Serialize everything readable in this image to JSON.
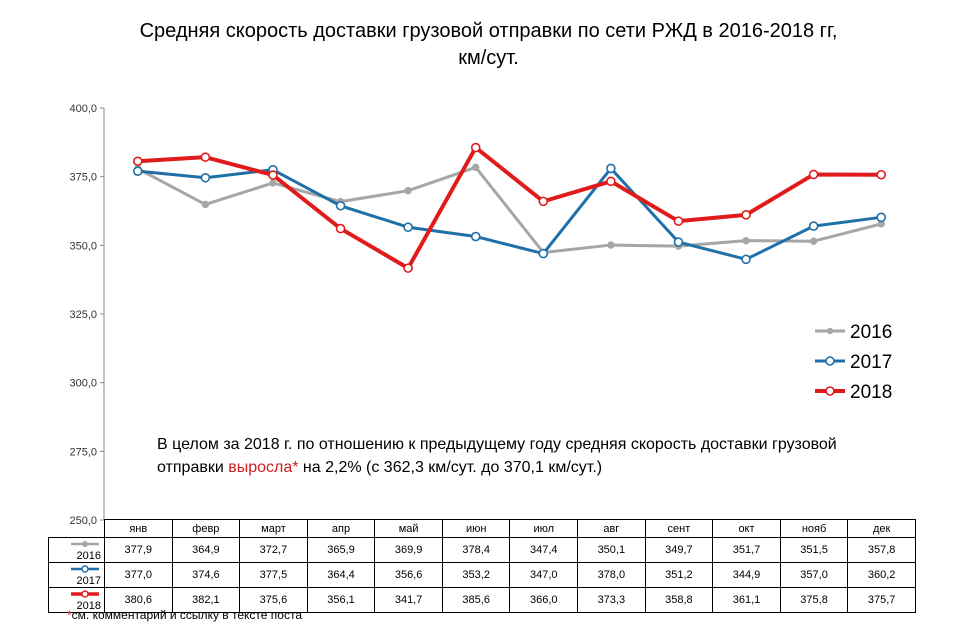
{
  "title_line1": "Средняя  скорость доставки грузовой отправки  по  сети РЖД в 2016-2018 гг,",
  "title_line2": "км/сут.",
  "note": {
    "before": "В целом за 2018 г. по отношению к предыдущему году средняя скорость доставки грузовой отправки ",
    "highlight": "выросла*",
    "after": " на 2,2% (с 362,3 км/сут. до 370,1 км/сут.)"
  },
  "footnote": {
    "star": "*",
    "text": "см. комментарий и ссылку в тексте поста"
  },
  "chart_data": {
    "type": "line",
    "title": "Средняя  скорость доставки грузовой отправки  по  сети РЖД в 2016-2018 гг, км/сут.",
    "categories": [
      "янв",
      "февр",
      "март",
      "апр",
      "май",
      "июн",
      "июл",
      "авг",
      "сент",
      "окт",
      "нояб",
      "дек"
    ],
    "ylim": [
      250,
      400
    ],
    "yticks": [
      "250,0",
      "275,0",
      "300,0",
      "325,0",
      "350,0",
      "375,0",
      "400,0"
    ],
    "grid": false,
    "legend_position": "right",
    "series": [
      {
        "name": "2016",
        "color": "#a6a6a6",
        "values": [
          377.9,
          364.9,
          372.7,
          365.9,
          369.9,
          378.4,
          347.4,
          350.1,
          349.7,
          351.7,
          351.5,
          357.8
        ],
        "labels": [
          "377,9",
          "364,9",
          "372,7",
          "365,9",
          "369,9",
          "378,4",
          "347,4",
          "350,1",
          "349,7",
          "351,7",
          "351,5",
          "357,8"
        ]
      },
      {
        "name": "2017",
        "color": "#1f6fa8",
        "values": [
          377.0,
          374.6,
          377.5,
          364.4,
          356.6,
          353.2,
          347.0,
          378.0,
          351.2,
          344.9,
          357.0,
          360.2
        ],
        "labels": [
          "377,0",
          "374,6",
          "377,5",
          "364,4",
          "356,6",
          "353,2",
          "347,0",
          "378,0",
          "351,2",
          "344,9",
          "357,0",
          "360,2"
        ]
      },
      {
        "name": "2018",
        "color": "#e01b1b",
        "values": [
          380.6,
          382.1,
          375.6,
          356.1,
          341.7,
          385.6,
          366.0,
          373.3,
          358.8,
          361.1,
          375.8,
          375.7
        ],
        "labels": [
          "380,6",
          "382,1",
          "375,6",
          "356,1",
          "341,7",
          "385,6",
          "366,0",
          "373,3",
          "358,8",
          "361,1",
          "375,8",
          "375,7"
        ]
      }
    ]
  }
}
